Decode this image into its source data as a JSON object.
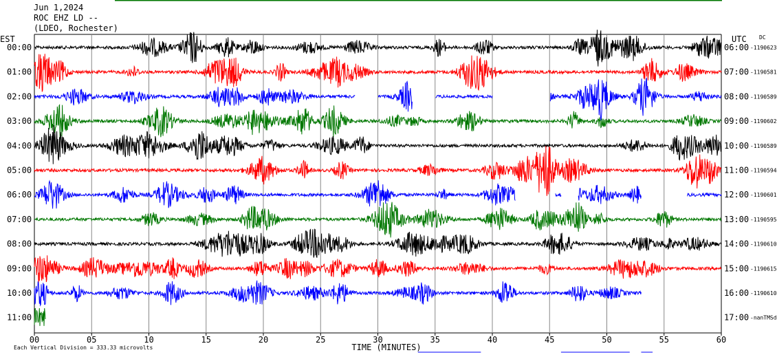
{
  "header": {
    "date": "Jun 1,2024",
    "station": "ROC EHZ LD --",
    "network": "(LDEO, Rochester)"
  },
  "labels": {
    "left_zone": "EST",
    "right_zone": "UTC",
    "dc_label": "DC",
    "footer_note": "Each Vertical Division =  333.33 microvolts"
  },
  "colors": {
    "trace_cycle": [
      "#000000",
      "#ff0000",
      "#0000ff",
      "#007700"
    ],
    "grid": "#888888",
    "top_bar": "#007700",
    "bottom_bar": "#0000ff"
  },
  "chart_data": {
    "type": "line",
    "xlabel": "TIME (MINUTES)",
    "x_ticks": [
      "00",
      "05",
      "10",
      "15",
      "20",
      "25",
      "30",
      "35",
      "40",
      "45",
      "50",
      "55",
      "60"
    ],
    "xlim": [
      0,
      60
    ],
    "grid": true,
    "rows": [
      {
        "est": "00:00",
        "utc": "06:00",
        "dc": "-1190623",
        "color": "#000000",
        "end_minute": 60,
        "gaps": []
      },
      {
        "est": "01:00",
        "utc": "07:00",
        "dc": "-1190581",
        "color": "#ff0000",
        "end_minute": 60,
        "gaps": []
      },
      {
        "est": "02:00",
        "utc": "08:00",
        "dc": "-1190589",
        "color": "#0000ff",
        "end_minute": 60,
        "gaps": [
          [
            28,
            30
          ],
          [
            33,
            35
          ],
          [
            40,
            45
          ]
        ]
      },
      {
        "est": "03:00",
        "utc": "09:00",
        "dc": "-1190602",
        "color": "#007700",
        "end_minute": 60,
        "gaps": []
      },
      {
        "est": "04:00",
        "utc": "10:00",
        "dc": "-1190589",
        "color": "#000000",
        "end_minute": 60,
        "gaps": []
      },
      {
        "est": "05:00",
        "utc": "11:00",
        "dc": "-1190594",
        "color": "#ff0000",
        "end_minute": 60,
        "gaps": []
      },
      {
        "est": "06:00",
        "utc": "12:00",
        "dc": "-1190601",
        "color": "#0000ff",
        "end_minute": 60,
        "gaps": [
          [
            42,
            45.5
          ],
          [
            46,
            47.5
          ],
          [
            53,
            57
          ]
        ]
      },
      {
        "est": "07:00",
        "utc": "13:00",
        "dc": "-1190595",
        "color": "#007700",
        "end_minute": 60,
        "gaps": []
      },
      {
        "est": "08:00",
        "utc": "14:00",
        "dc": "-1190610",
        "color": "#000000",
        "end_minute": 60,
        "gaps": []
      },
      {
        "est": "09:00",
        "utc": "15:00",
        "dc": "-1190615",
        "color": "#ff0000",
        "end_minute": 60,
        "gaps": []
      },
      {
        "est": "10:00",
        "utc": "16:00",
        "dc": "-1190610",
        "color": "#0000ff",
        "end_minute": 53,
        "gaps": []
      },
      {
        "est": "11:00",
        "utc": "17:00",
        "dc": "-nanTMSd",
        "color": "#007700",
        "end_minute": 1,
        "gaps": []
      }
    ]
  }
}
